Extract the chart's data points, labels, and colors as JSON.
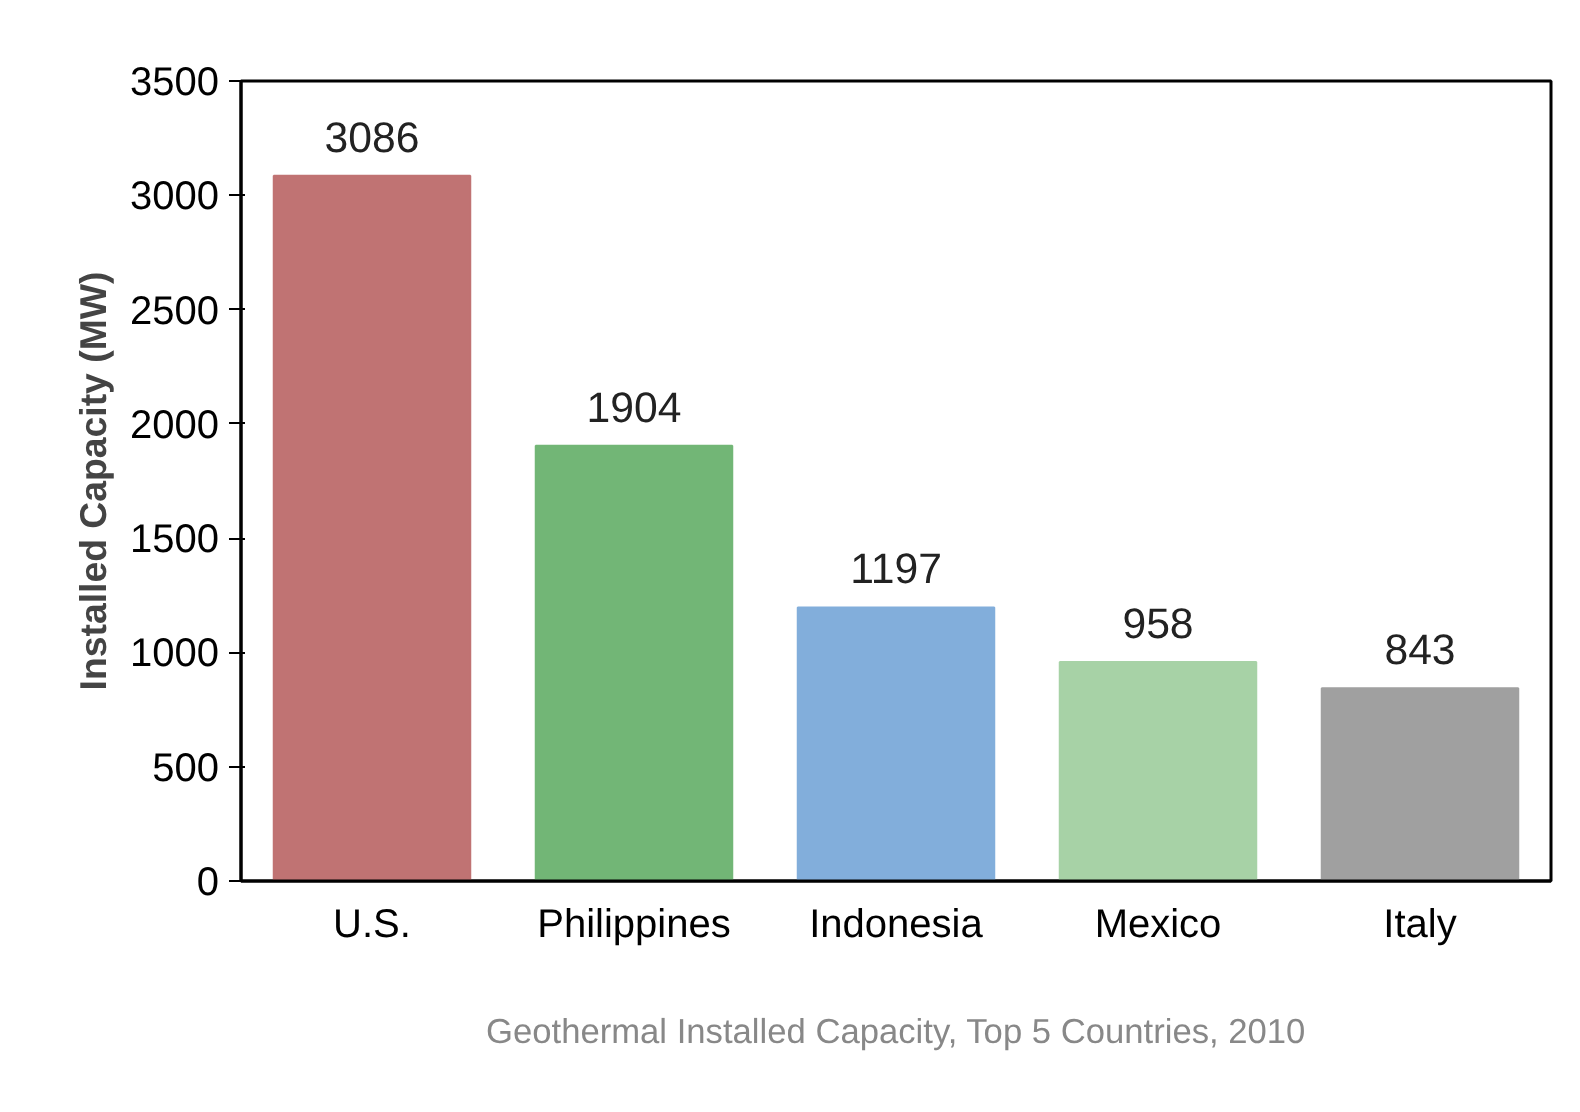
{
  "chart_data": {
    "type": "bar",
    "ylabel": "Installed Capacity (MW)",
    "categories": [
      "U.S.",
      "Philippines",
      "Indonesia",
      "Mexico",
      "Italy"
    ],
    "values": [
      3086,
      1904,
      1197,
      958,
      843
    ],
    "colors": [
      "#c07373",
      "#72b676",
      "#82aedb",
      "#a7d2a6",
      "#a0a0a0"
    ],
    "ylim": [
      0,
      3500
    ],
    "yticks": [
      0,
      500,
      1000,
      1500,
      2000,
      2500,
      3000,
      3500
    ],
    "data_labels": true,
    "grid": false,
    "annotations": [
      "Geothermal Installed Capacity, Top 5 Countries, 2010"
    ]
  }
}
